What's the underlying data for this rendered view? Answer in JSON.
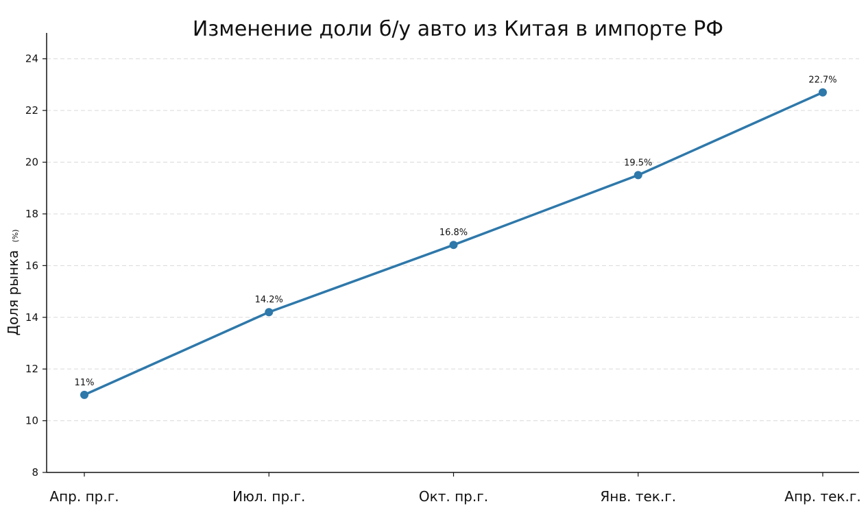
{
  "chart_data": {
    "type": "line",
    "title": "Изменение доли б/у авто из Китая в импорте РФ",
    "xlabel": "",
    "ylabel": "Доля рынка",
    "ylabel_unit": "(%)",
    "categories": [
      "Апр. пр.г.",
      "Июл. пр.г.",
      "Окт. пр.г.",
      "Янв. тек.г.",
      "Апр. тек.г."
    ],
    "series": [
      {
        "values": [
          11,
          14.2,
          16.8,
          19.5,
          22.7
        ],
        "data_labels": [
          "11%",
          "14.2%",
          "16.8%",
          "19.5%",
          "22.7%"
        ],
        "color": "#2e78aa"
      }
    ],
    "ylim": [
      8,
      25
    ],
    "yticks": [
      8,
      10,
      12,
      14,
      16,
      18,
      20,
      22,
      24
    ],
    "ytick_labels": [
      "8",
      "10",
      "12",
      "14",
      "16",
      "18",
      "20",
      "22",
      "24"
    ],
    "grid": "horizontal dashed",
    "legend": "none"
  }
}
